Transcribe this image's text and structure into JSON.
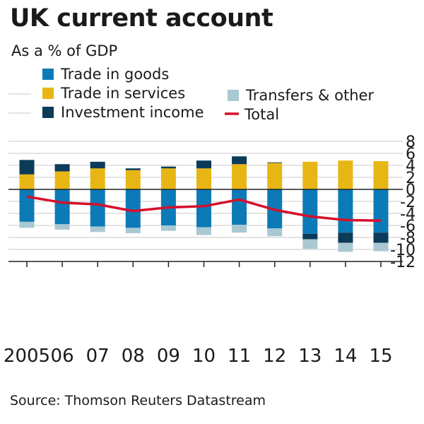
{
  "title": "UK current account",
  "subtitle": "As a % of GDP",
  "source": "Source: Thomson Reuters Datastream",
  "colors": {
    "goods": "#0d7ab8",
    "services": "#e8b614",
    "investment": "#0b3b58",
    "transfers": "#a9c8d2",
    "total": "#d5102a",
    "grid": "#c8c8c8",
    "axis": "#222222"
  },
  "chart_data": {
    "type": "bar",
    "stacked": true,
    "categories": [
      "2005",
      "06",
      "07",
      "08",
      "09",
      "10",
      "11",
      "12",
      "13",
      "14",
      "15"
    ],
    "series": [
      {
        "name": "Trade in goods",
        "kind": "bar",
        "values": [
          -5.4,
          -5.8,
          -6.2,
          -6.4,
          -6.0,
          -6.3,
          -5.9,
          -6.5,
          -7.4,
          -7.2,
          -7.2
        ]
      },
      {
        "name": "Trade in services",
        "kind": "bar",
        "values": [
          2.5,
          3.0,
          3.5,
          3.2,
          3.5,
          3.5,
          4.2,
          4.4,
          4.6,
          4.8,
          4.7
        ]
      },
      {
        "name": "Investment income",
        "kind": "bar",
        "values": [
          2.4,
          1.2,
          1.1,
          0.3,
          0.3,
          1.3,
          1.3,
          0.1,
          0.0,
          0.0,
          0.0
        ]
      },
      {
        "name": "Transfers & other",
        "kind": "bar",
        "values": [
          -1.0,
          -0.9,
          -0.9,
          -0.9,
          -0.9,
          -1.3,
          -1.3,
          -1.3,
          -1.6,
          -1.5,
          -1.4
        ]
      },
      {
        "name": "Investment income",
        "kind": "bar-negative",
        "legend": false,
        "values": [
          0,
          0,
          0,
          0,
          0,
          0,
          0,
          0,
          -0.9,
          -1.7,
          -1.7
        ]
      },
      {
        "name": "Total",
        "kind": "line",
        "values": [
          -1.2,
          -2.2,
          -2.5,
          -3.6,
          -3.0,
          -2.8,
          -1.7,
          -3.4,
          -4.5,
          -5.1,
          -5.2
        ]
      }
    ],
    "legend": [
      "Trade in goods",
      "Trade in services",
      "Investment income",
      "Transfers & other",
      "Total"
    ],
    "ylim": [
      -12,
      8
    ],
    "yticks": [
      8,
      6,
      4,
      2,
      0,
      -2,
      -4,
      -6,
      -8,
      -10,
      -12
    ],
    "ytick_labels": [
      "8",
      "6",
      "4",
      "2",
      "0",
      "-2",
      "-4",
      "-6",
      "-8",
      "-10",
      "-12"
    ],
    "y_axis_position": "right",
    "grid": true,
    "legend_position": "top"
  }
}
